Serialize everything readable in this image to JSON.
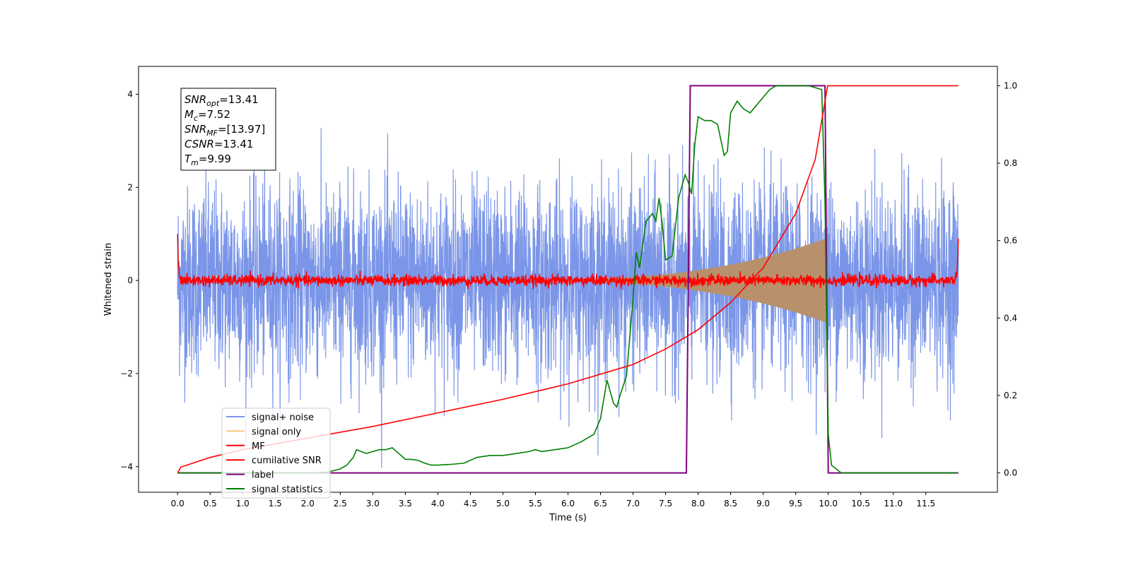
{
  "chart_data": {
    "type": "line",
    "xlabel": "Time (s)",
    "ylabel": "Whitened strain",
    "xlim": [
      -0.6,
      12.6
    ],
    "ylim": [
      -4.55,
      4.6
    ],
    "y2lim": [
      -0.05,
      1.05
    ],
    "x_ticks": [
      "0.0",
      "0.5",
      "1.0",
      "1.5",
      "2.0",
      "2.5",
      "3.0",
      "3.5",
      "4.0",
      "4.5",
      "5.0",
      "5.5",
      "6.0",
      "6.5",
      "7.0",
      "7.5",
      "8.0",
      "8.5",
      "9.0",
      "9.5",
      "10.0",
      "10.5",
      "11.0",
      "11.5"
    ],
    "y_ticks": [
      "4",
      "2",
      "0",
      "−2",
      "−4"
    ],
    "y2_ticks": [
      "1.0",
      "0.8",
      "0.6",
      "0.4",
      "0.2",
      "0.0"
    ],
    "legend_position": "lower-left",
    "annotation": {
      "lines": [
        {
          "base": "SNR",
          "sub": "opt",
          "text": "=13.41"
        },
        {
          "base": "M",
          "sub": "c",
          "text": "=7.52"
        },
        {
          "base": "SNR",
          "sub": "MF",
          "text": "=[13.97]"
        },
        {
          "base": "CSNR",
          "sub": "",
          "text": "=13.41"
        },
        {
          "base": "T",
          "sub": "m",
          "text": "=9.99"
        }
      ]
    },
    "series": [
      {
        "name": "signal+ noise",
        "color": "#7b96e8",
        "axis": "left",
        "description": "noise band approx ±2.6 peaks to ±4, x 0 to 12"
      },
      {
        "name": "signal only",
        "color": "#f5c77a",
        "axis": "left",
        "envelope": {
          "start": 5.5,
          "end": 9.98,
          "amp_end": 1.0
        }
      },
      {
        "name": "MF",
        "color": "#ff0000",
        "axis": "left",
        "description": "near zero with small fluctuations, spikes at edges to 1.0"
      },
      {
        "name": "cumilative SNR",
        "color": "#ff0000",
        "axis": "right",
        "x": [
          0.0,
          0.05,
          0.5,
          1.0,
          2.0,
          3.0,
          4.0,
          5.0,
          6.0,
          7.0,
          7.5,
          8.0,
          8.5,
          9.0,
          9.5,
          9.8,
          9.99,
          10.0,
          12.0
        ],
        "values": [
          0.0,
          0.015,
          0.04,
          0.06,
          0.09,
          0.12,
          0.155,
          0.19,
          0.23,
          0.28,
          0.32,
          0.37,
          0.44,
          0.53,
          0.67,
          0.81,
          1.0,
          1.0,
          1.0
        ]
      },
      {
        "name": "label",
        "color": "#800080",
        "axis": "right",
        "x": [
          0.0,
          7.82,
          7.88,
          9.95,
          10.0,
          12.0
        ],
        "values": [
          0.0,
          0.0,
          1.0,
          1.0,
          0.0,
          0.0
        ]
      },
      {
        "name": "signal statistics",
        "color": "#008000",
        "axis": "right",
        "x": [
          0.0,
          2.0,
          2.3,
          2.5,
          2.6,
          2.7,
          2.75,
          2.9,
          3.0,
          3.1,
          3.2,
          3.3,
          3.4,
          3.5,
          3.6,
          3.7,
          3.8,
          3.9,
          4.0,
          4.2,
          4.4,
          4.6,
          4.8,
          5.0,
          5.2,
          5.4,
          5.5,
          5.6,
          5.8,
          6.0,
          6.2,
          6.4,
          6.5,
          6.6,
          6.7,
          6.75,
          6.8,
          6.9,
          7.0,
          7.05,
          7.1,
          7.2,
          7.3,
          7.35,
          7.4,
          7.45,
          7.5,
          7.6,
          7.7,
          7.8,
          7.85,
          7.9,
          7.95,
          8.0,
          8.1,
          8.2,
          8.3,
          8.4,
          8.45,
          8.5,
          8.6,
          8.7,
          8.8,
          8.9,
          9.0,
          9.1,
          9.2,
          9.3,
          9.5,
          9.7,
          9.9,
          9.95,
          10.0,
          10.05,
          10.2,
          11.0,
          11.99
        ],
        "values": [
          0.0,
          0.0,
          0.002,
          0.01,
          0.02,
          0.04,
          0.06,
          0.05,
          0.055,
          0.06,
          0.06,
          0.065,
          0.05,
          0.035,
          0.035,
          0.032,
          0.025,
          0.02,
          0.02,
          0.022,
          0.025,
          0.04,
          0.045,
          0.045,
          0.05,
          0.055,
          0.06,
          0.055,
          0.06,
          0.065,
          0.08,
          0.1,
          0.14,
          0.24,
          0.18,
          0.17,
          0.2,
          0.25,
          0.45,
          0.57,
          0.53,
          0.65,
          0.67,
          0.65,
          0.71,
          0.64,
          0.55,
          0.56,
          0.71,
          0.77,
          0.75,
          0.72,
          0.85,
          0.92,
          0.91,
          0.91,
          0.9,
          0.82,
          0.83,
          0.93,
          0.96,
          0.94,
          0.93,
          0.95,
          0.97,
          0.99,
          1.0,
          1.0,
          1.0,
          1.0,
          0.99,
          0.7,
          0.1,
          0.02,
          0.0,
          0.0,
          0.0
        ]
      }
    ]
  }
}
